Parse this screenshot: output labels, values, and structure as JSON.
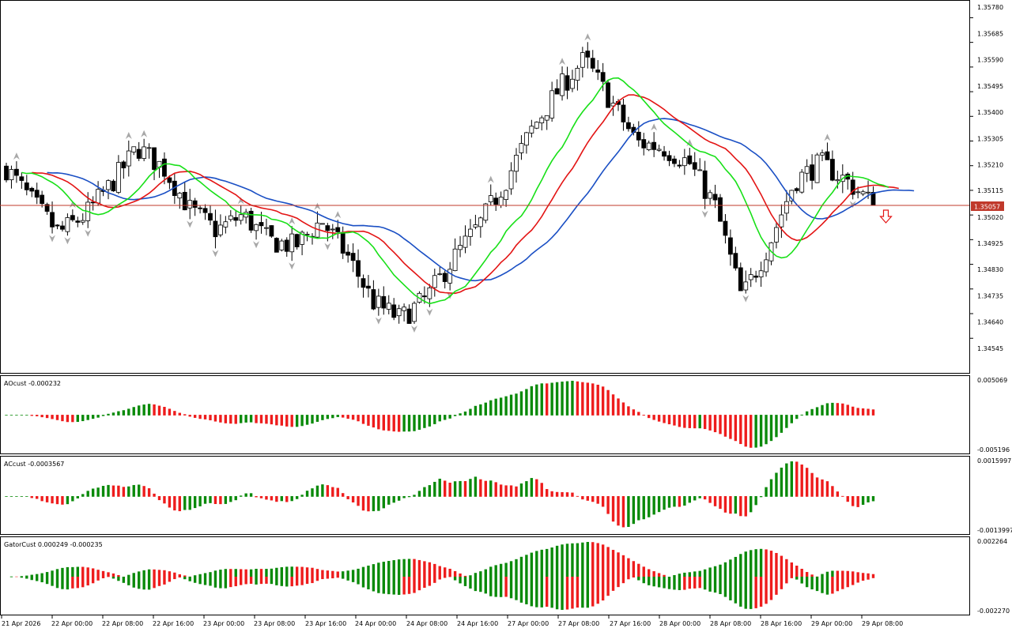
{
  "colors": {
    "background": "#ffffff",
    "frame": "#000000",
    "bull_body": "#ffffff",
    "bear_body": "#000000",
    "alligator_jaw": "#1a4fc4",
    "alligator_teeth": "#e31414",
    "alligator_lips": "#18e018",
    "bid_line": "#c0392b",
    "bid_badge": "#c0392b",
    "hist_up": "#0a8a0a",
    "hist_down": "#ee1c1c",
    "fractal": "#a8a8a8",
    "sell_arrow": "#e31414"
  },
  "main_chart": {
    "symbol_type": "candlestick",
    "price_axis_labels": [
      "1.35780",
      "1.35685",
      "1.35590",
      "1.35495",
      "1.35400",
      "1.35305",
      "1.35210",
      "1.35115",
      "1.35020",
      "1.34925",
      "1.34830",
      "1.34735",
      "1.34640",
      "1.34545"
    ],
    "current_price_label": "1.35057",
    "ylim": [
      1.3443,
      1.3583
    ],
    "time_labels": [
      "21 Apr 2026",
      "22 Apr 00:00",
      "22 Apr 08:00",
      "22 Apr 16:00",
      "23 Apr 00:00",
      "23 Apr 08:00",
      "23 Apr 16:00",
      "24 Apr 00:00",
      "24 Apr 08:00",
      "24 Apr 16:00",
      "27 Apr 00:00",
      "27 Apr 08:00",
      "27 Apr 16:00",
      "28 Apr 00:00",
      "28 Apr 08:00",
      "28 Apr 16:00",
      "29 Apr 00:00",
      "29 Apr 08:00"
    ]
  },
  "chart_data": {
    "type": "line",
    "x_labels": [
      "21 Apr 2026",
      "22 Apr 00:00",
      "22 Apr 08:00",
      "22 Apr 16:00",
      "23 Apr 00:00",
      "23 Apr 08:00",
      "23 Apr 16:00",
      "24 Apr 00:00",
      "24 Apr 08:00",
      "24 Apr 16:00",
      "27 Apr 00:00",
      "27 Apr 08:00",
      "27 Apr 16:00",
      "28 Apr 00:00",
      "28 Apr 08:00",
      "28 Apr 16:00",
      "29 Apr 00:00",
      "29 Apr 08:00"
    ],
    "close_path": [
      1.352,
      1.3507,
      1.3495,
      1.3502,
      1.3514,
      1.3528,
      1.352,
      1.3504,
      1.3496,
      1.3502,
      1.3492,
      1.349,
      1.35,
      1.3486,
      1.3468,
      1.3462,
      1.347,
      1.3485,
      1.3498,
      1.3515,
      1.3535,
      1.355,
      1.3562,
      1.3546,
      1.353,
      1.3528,
      1.3522,
      1.3505,
      1.347,
      1.349,
      1.3515,
      1.3522,
      1.3515,
      1.3506
    ],
    "current_price": 1.35057,
    "ylim": [
      1.3443,
      1.3583
    ]
  },
  "indicators": [
    {
      "title": "AOcust -0.000232",
      "ymax_label": "0.005069",
      "ymin_label": "-0.005196"
    },
    {
      "title": "ACcust -0.0003567",
      "ymax_label": "0.0015997",
      "ymin_label": "-0.0013997"
    },
    {
      "title": "GatorCust 0.000249 -0.000235",
      "ymax_label": "0.002264",
      "ymin_label": "-0.002270"
    }
  ]
}
